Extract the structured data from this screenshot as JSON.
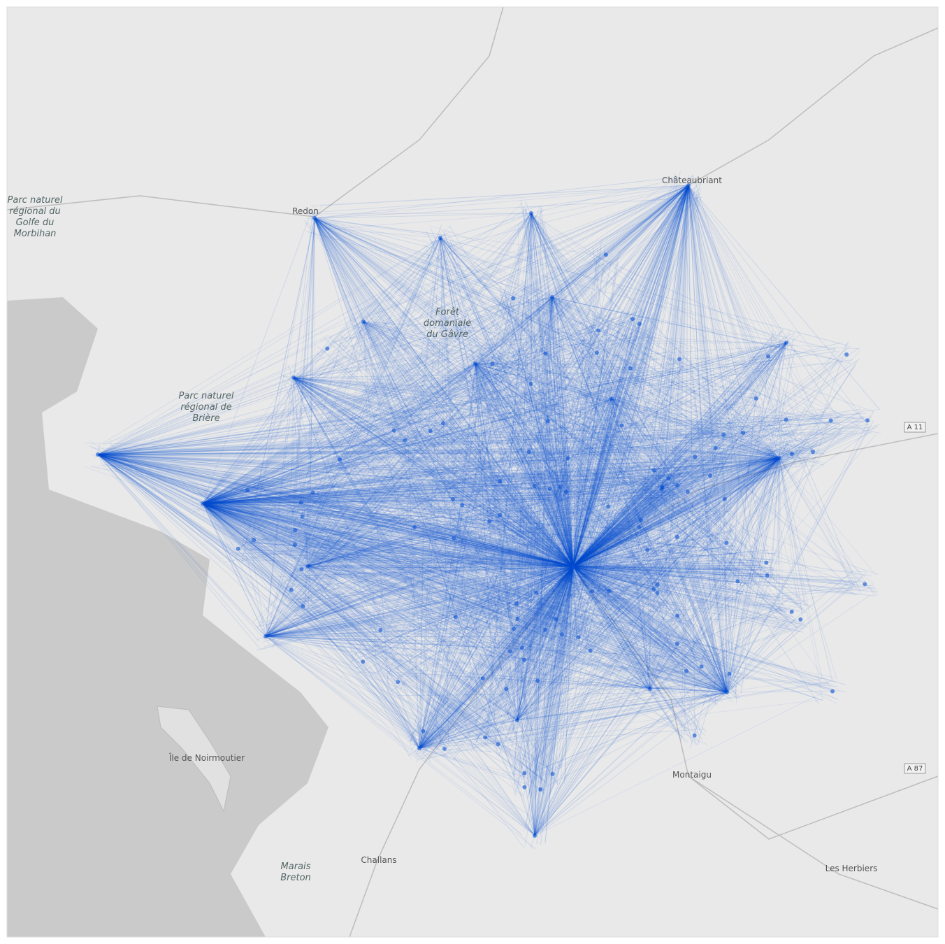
{
  "map": {
    "labels": [
      "Parc naturel régional du Golfe du Morbihan",
      "Parc naturel régional de Brière",
      "Forêt domaniale du Gâvre",
      "Châteaubriant",
      "Redon",
      "A 11",
      "A 87",
      "Montaigu",
      "Challans",
      "Marais Breton",
      "Les Herbiers",
      "Île de Noirmoutier"
    ]
  }
}
